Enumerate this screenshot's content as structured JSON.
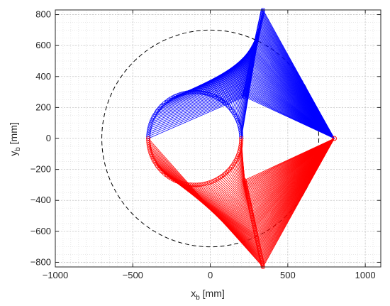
{
  "chart_data": {
    "type": "line",
    "title": "",
    "xlabel": {
      "main": "x",
      "sub": "b",
      "unit": " [mm]"
    },
    "ylabel": {
      "main": "y",
      "sub": "b",
      "unit": " [mm]"
    },
    "xlim": [
      -1000,
      1100
    ],
    "ylim": [
      -830,
      830
    ],
    "xticks": [
      -1000,
      -500,
      0,
      500,
      1000
    ],
    "yticks": [
      -800,
      -600,
      -400,
      -200,
      0,
      200,
      400,
      600,
      800
    ],
    "grid": true,
    "grid_style": "dotted",
    "minor_grid": true,
    "legend": "none",
    "anchor_point": {
      "x": 800,
      "y": 0
    },
    "series": [
      {
        "color": "#0000ff",
        "style": "lines from anchor point to the upper arc of the circle, plus a lattice of link lines back to the arm tip",
        "anchor": [
          800,
          0
        ],
        "circle_center": [
          -100,
          0
        ],
        "circle_radius": 300,
        "angle_range_deg": [
          0,
          180
        ],
        "tip_peak": [
          340,
          830
        ]
      },
      {
        "color": "#ff0000",
        "style": "mirror image of the blue family below the x axis",
        "anchor": [
          800,
          0
        ],
        "circle_center": [
          -100,
          0
        ],
        "circle_radius": 300,
        "angle_range_deg": [
          180,
          360
        ],
        "tip_peak": [
          340,
          -830
        ]
      }
    ],
    "reference_circle": {
      "style": "dashed",
      "color": "#000000",
      "center": [
        0,
        0
      ],
      "radius": 700
    },
    "markers": {
      "shape": "circle",
      "fill": "none"
    }
  }
}
